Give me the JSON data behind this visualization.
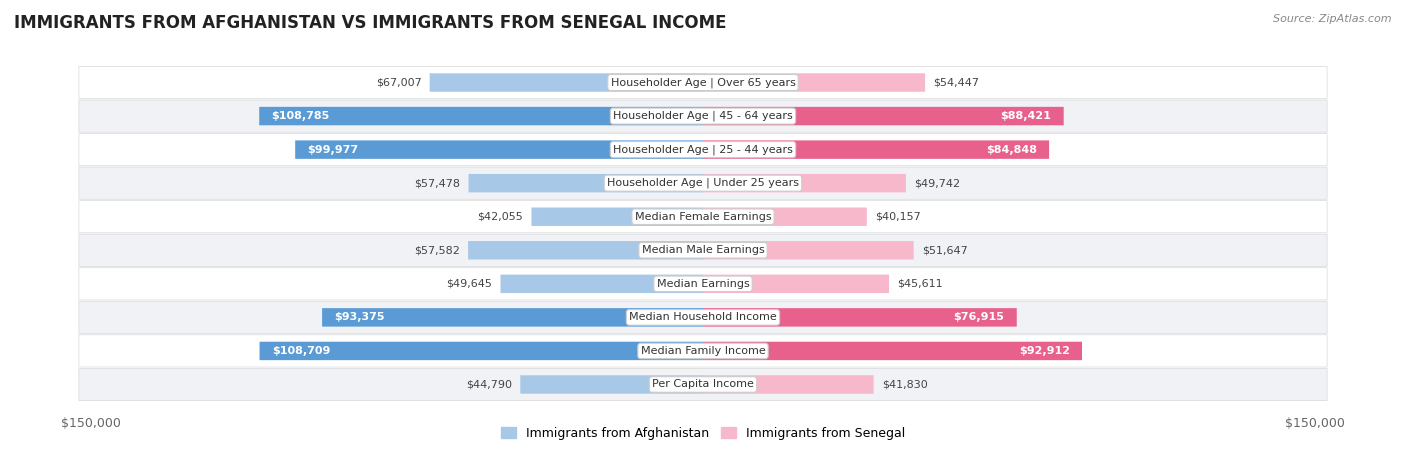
{
  "title": "IMMIGRANTS FROM AFGHANISTAN VS IMMIGRANTS FROM SENEGAL INCOME",
  "source": "Source: ZipAtlas.com",
  "categories": [
    "Per Capita Income",
    "Median Family Income",
    "Median Household Income",
    "Median Earnings",
    "Median Male Earnings",
    "Median Female Earnings",
    "Householder Age | Under 25 years",
    "Householder Age | 25 - 44 years",
    "Householder Age | 45 - 64 years",
    "Householder Age | Over 65 years"
  ],
  "afghanistan_values": [
    44790,
    108709,
    93375,
    49645,
    57582,
    42055,
    57478,
    99977,
    108785,
    67007
  ],
  "senegal_values": [
    41830,
    92912,
    76915,
    45611,
    51647,
    40157,
    49742,
    84848,
    88421,
    54447
  ],
  "max_value": 150000,
  "afg_color_light": "#a8c8e8",
  "afg_color_dark": "#5b9bd5",
  "sen_color_light": "#f8b8cc",
  "sen_color_dark": "#e8608c",
  "threshold": 75000,
  "row_colors": [
    "#f0f2f5",
    "#ffffff",
    "#f0f2f5",
    "#ffffff",
    "#f0f2f5",
    "#ffffff",
    "#f0f2f5",
    "#ffffff",
    "#f0f2f5",
    "#ffffff"
  ],
  "legend_afghanistan": "Immigrants from Afghanistan",
  "legend_senegal": "Immigrants from Senegal",
  "x_tick_left": "$150,000",
  "x_tick_right": "$150,000",
  "title_fontsize": 12,
  "label_fontsize": 8,
  "value_fontsize": 8
}
